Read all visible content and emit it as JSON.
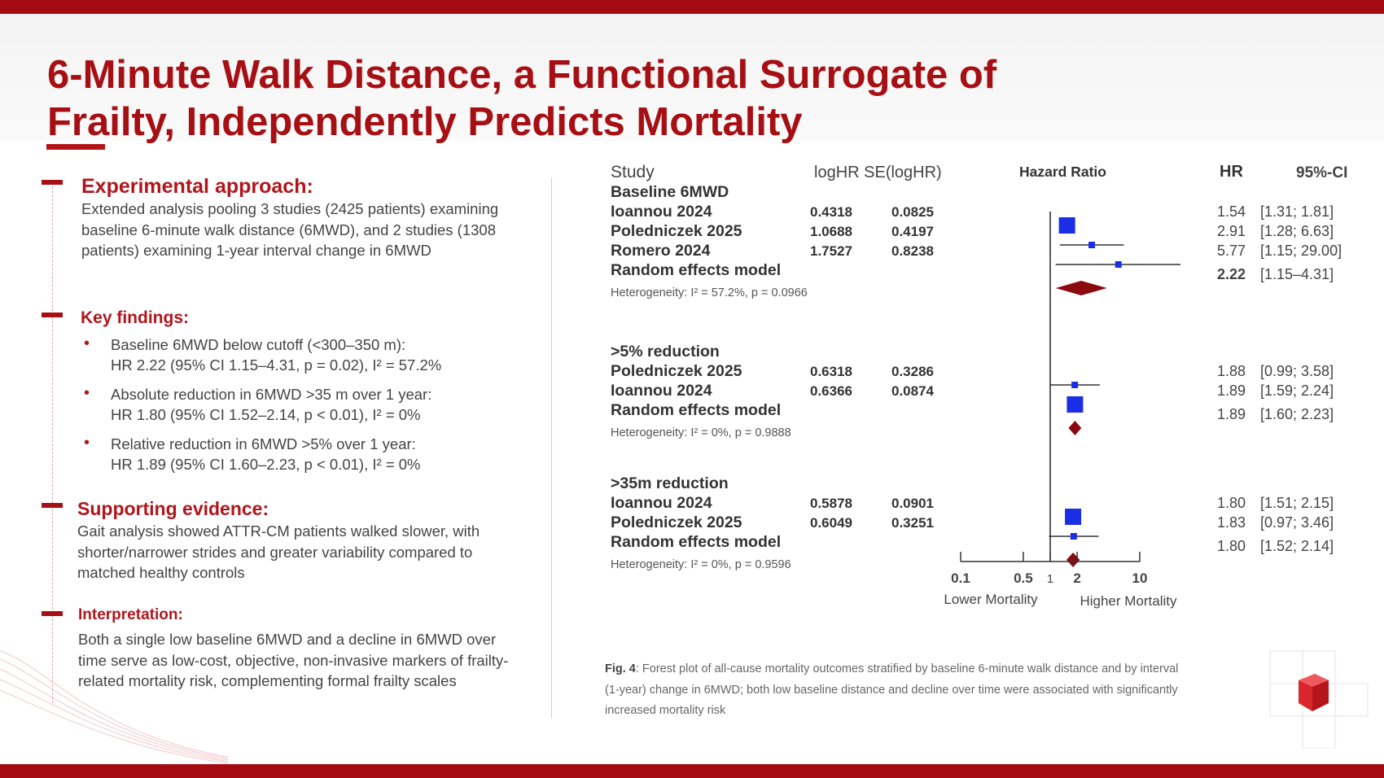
{
  "title_line1": "6-Minute Walk Distance, a Functional Surrogate of",
  "title_line2": "Frailty, Independently Predicts Mortality",
  "left": {
    "approach": {
      "heading": "Experimental approach:",
      "text": "Extended analysis pooling 3 studies (2425 patients) examining baseline 6-minute walk distance (6MWD), and 2 studies (1308 patients) examining 1-year interval change in 6MWD"
    },
    "findings": {
      "heading": "Key findings:",
      "items": [
        {
          "line1": "Baseline 6MWD below cutoff (<300–350 m):",
          "line2": "HR 2.22 (95% CI 1.15–4.31, p = 0.02), I² = 57.2%"
        },
        {
          "line1": "Absolute reduction in 6MWD >35 m over 1 year:",
          "line2": "HR 1.80 (95% CI 1.52–2.14, p < 0.01), I² = 0%"
        },
        {
          "line1": "Relative reduction in 6MWD >5% over 1 year:",
          "line2": "HR 1.89 (95% CI 1.60–2.23, p < 0.01), I² = 0%"
        }
      ]
    },
    "evidence": {
      "heading": "Supporting evidence:",
      "text": "Gait analysis showed ATTR-CM patients walked slower, with shorter/narrower strides and greater variability compared to matched healthy controls"
    },
    "interpretation": {
      "heading": "Interpretation:",
      "text": "Both a single low baseline 6MWD and a decline in 6MWD over time serve as low-cost, objective, non-invasive markers of frailty-related mortality risk, complementing formal frailty scales"
    }
  },
  "caption": {
    "prefix": "Fig. 4",
    "text": ": Forest plot of all-cause mortality outcomes stratified by baseline 6-minute walk distance and by interval (1-year) change in 6MWD; both low baseline distance and decline over time were associated with significantly increased mortality risk"
  },
  "colors": {
    "accent": "#a61015",
    "study_marker": "#1a2ee6",
    "summary_marker": "#8b0a0f"
  },
  "chart_data": {
    "type": "forest",
    "columns": {
      "study": "Study",
      "loghr": "logHR",
      "se": "SE(logHR)",
      "plot": "Hazard Ratio",
      "hr": "HR",
      "ci": "95%-CI"
    },
    "x_axis": {
      "scale": "log",
      "ticks": [
        "0.1",
        "0.5",
        "1",
        "2",
        "10"
      ],
      "left_label": "Lower Mortality",
      "right_label": "Higher Mortality"
    },
    "groups": [
      {
        "name": "Baseline 6MWD",
        "studies": [
          {
            "study": "Ioannou 2024",
            "loghr": "0.4318",
            "se": "0.0825",
            "hr": 1.54,
            "lo": 1.31,
            "hi": 1.81,
            "hr_text": "1.54",
            "ci_text": "[1.31; 1.81]"
          },
          {
            "study": "Poledniczek 2025",
            "loghr": "1.0688",
            "se": "0.4197",
            "hr": 2.91,
            "lo": 1.28,
            "hi": 6.63,
            "hr_text": "2.91",
            "ci_text": "[1.28; 6.63]"
          },
          {
            "study": "Romero 2024",
            "loghr": "1.7527",
            "se": "0.8238",
            "hr": 5.77,
            "lo": 1.15,
            "hi": 29.0,
            "hr_text": "5.77",
            "ci_text": "[1.15; 29.00]"
          }
        ],
        "summary": {
          "label": "Random effects model",
          "hr": 2.22,
          "lo": 1.15,
          "hi": 4.31,
          "hr_text": "2.22",
          "ci_text": "[1.15–4.31]"
        },
        "heterogeneity": "Heterogeneity: I² = 57.2%, p = 0.0966"
      },
      {
        "name": ">5% reduction",
        "studies": [
          {
            "study": "Poledniczek 2025",
            "loghr": "0.6318",
            "se": "0.3286",
            "hr": 1.88,
            "lo": 0.99,
            "hi": 3.58,
            "hr_text": "1.88",
            "ci_text": "[0.99; 3.58]"
          },
          {
            "study": "Ioannou 2024",
            "loghr": "0.6366",
            "se": "0.0874",
            "hr": 1.89,
            "lo": 1.59,
            "hi": 2.24,
            "hr_text": "1.89",
            "ci_text": "[1.59; 2.24]"
          }
        ],
        "summary": {
          "label": "Random effects model",
          "hr": 1.89,
          "lo": 1.6,
          "hi": 2.23,
          "hr_text": "1.89",
          "ci_text": "[1.60; 2.23]"
        },
        "heterogeneity": "Heterogeneity: I² = 0%, p = 0.9888"
      },
      {
        "name": ">35m reduction",
        "studies": [
          {
            "study": "Ioannou 2024",
            "loghr": "0.5878",
            "se": "0.0901",
            "hr": 1.8,
            "lo": 1.51,
            "hi": 2.15,
            "hr_text": "1.80",
            "ci_text": "[1.51; 2.15]"
          },
          {
            "study": "Poledniczek 2025",
            "loghr": "0.6049",
            "se": "0.3251",
            "hr": 1.83,
            "lo": 0.97,
            "hi": 3.46,
            "hr_text": "1.83",
            "ci_text": "[0.97; 3.46]"
          }
        ],
        "summary": {
          "label": "Random effects model",
          "hr": 1.8,
          "lo": 1.52,
          "hi": 2.14,
          "hr_text": "1.80",
          "ci_text": "[1.52; 2.14]"
        },
        "heterogeneity": "Heterogeneity: I² = 0%, p = 0.9596"
      }
    ]
  }
}
